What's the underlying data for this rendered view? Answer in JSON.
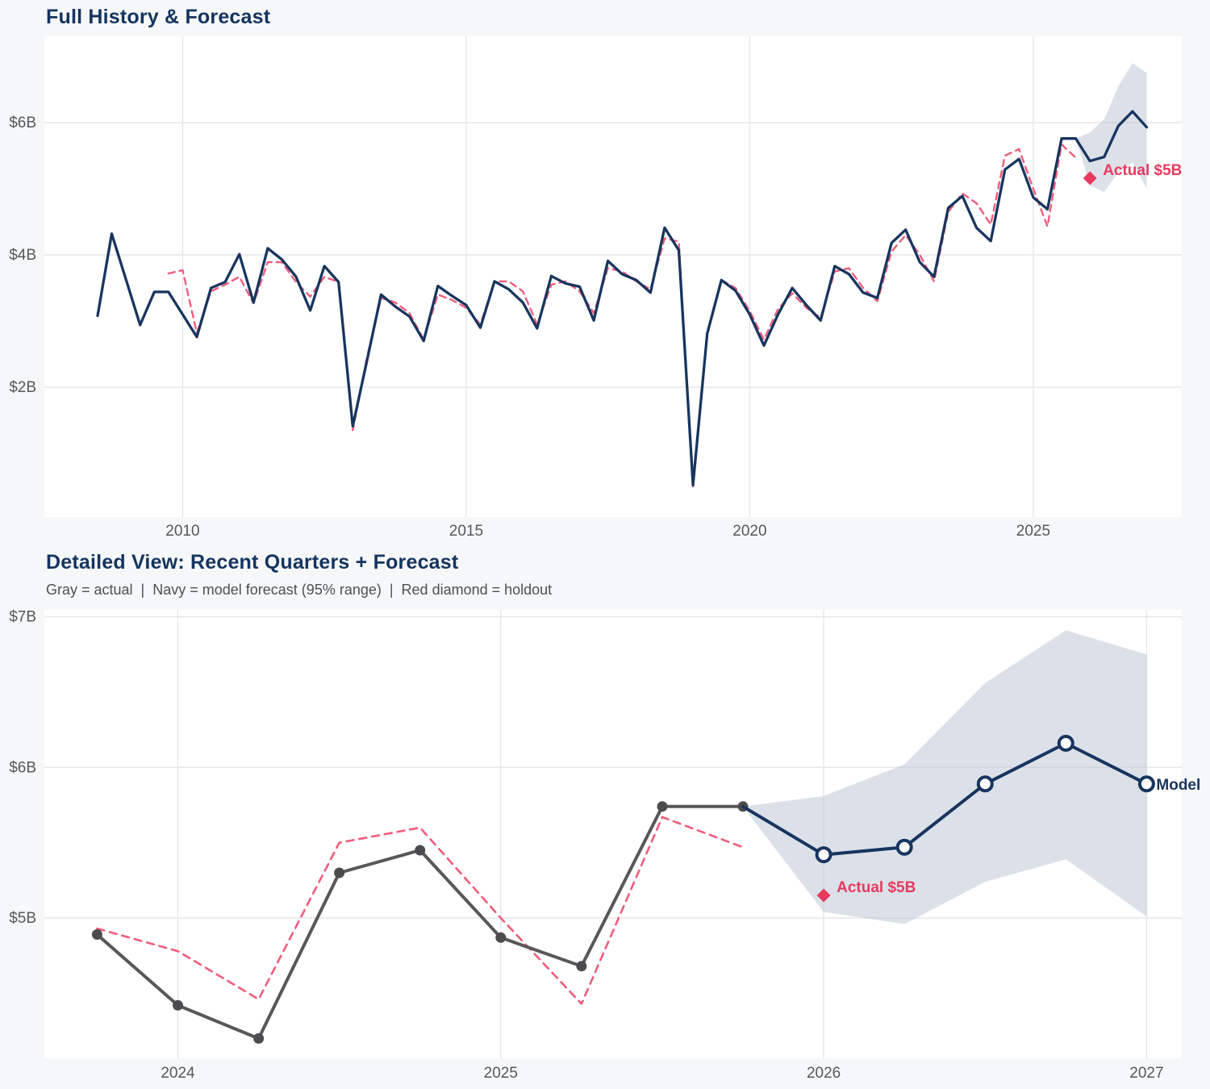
{
  "colors": {
    "page_bg": "#f6f7f9",
    "plot_bg": "#ffffff",
    "grid": "#e5e6e8",
    "tick_text": "#53595f",
    "title": "#14345f",
    "subtitle": "#4b5157",
    "navy": "#17355e",
    "pink": "#ee5d7c",
    "holdout": "#e73a5f",
    "gray": "#58585a",
    "band": "#b9c4d3"
  },
  "chart_data": [
    {
      "id": "full-history",
      "type": "line",
      "title": "Full History & Forecast",
      "x_axis": {
        "ticks": [
          2010,
          2015,
          2020,
          2025
        ],
        "range": [
          2007.55,
          2027.6
        ],
        "unit": "year"
      },
      "y_axis": {
        "ticks": [
          {
            "value": 6,
            "label": "$6B"
          },
          {
            "value": 4,
            "label": "$4B"
          },
          {
            "value": 2,
            "label": "$2B"
          }
        ],
        "range": [
          0.05,
          7.3
        ],
        "unit": "billions USD"
      },
      "series": [
        {
          "id": "fit-line",
          "name": "model fit",
          "color": "#ee5d7c",
          "width": 2.4,
          "dash": "8 6",
          "start": 2009.75,
          "step": 0.25,
          "values": [
            3.72,
            3.77,
            2.82,
            3.45,
            3.55,
            3.67,
            3.27,
            3.89,
            3.89,
            3.59,
            3.37,
            3.67,
            3.59,
            1.35,
            2.45,
            3.35,
            3.28,
            3.12,
            2.72,
            3.4,
            3.32,
            3.2,
            2.95,
            3.6,
            3.6,
            3.45,
            2.95,
            3.55,
            3.6,
            3.45,
            3.12,
            3.8,
            3.75,
            3.6,
            3.48,
            4.25,
            4.2,
            0.5,
            2.81,
            3.62,
            3.5,
            3.15,
            2.72,
            3.18,
            3.42,
            3.2,
            3.05,
            3.75,
            3.8,
            3.5,
            3.3,
            4.05,
            4.3,
            4.0,
            3.6,
            4.65,
            4.93,
            4.78,
            4.46,
            5.5,
            5.6,
            5.0,
            4.43,
            5.67,
            5.47
          ]
        },
        {
          "id": "history-forecast-line",
          "name": "actual + model forecast",
          "color": "#17355e",
          "width": 3.3,
          "start": 2008.5,
          "step": 0.25,
          "values": [
            3.08,
            4.32,
            3.63,
            2.94,
            3.44,
            3.44,
            3.1,
            2.76,
            3.5,
            3.59,
            4.01,
            3.28,
            4.1,
            3.93,
            3.67,
            3.16,
            3.83,
            3.59,
            1.41,
            2.4,
            3.4,
            3.22,
            3.07,
            2.7,
            3.53,
            3.38,
            3.24,
            2.9,
            3.6,
            3.48,
            3.28,
            2.89,
            3.68,
            3.57,
            3.52,
            3.01,
            3.91,
            3.71,
            3.62,
            3.43,
            4.41,
            4.07,
            0.52,
            2.81,
            3.62,
            3.46,
            3.1,
            2.63,
            3.1,
            3.5,
            3.24,
            3.01,
            3.83,
            3.71,
            3.43,
            3.35,
            4.18,
            4.38,
            3.89,
            3.67,
            4.71,
            4.89,
            4.41,
            4.21,
            5.29,
            5.45,
            4.87,
            4.69,
            5.76,
            5.76,
            5.42,
            5.48,
            5.95,
            6.17,
            5.93
          ]
        }
      ],
      "forecast_band": {
        "start": 2025.75,
        "step": 0.25,
        "upper": [
          5.76,
          5.85,
          6.05,
          6.55,
          6.9,
          6.75
        ],
        "lower": [
          5.76,
          5.05,
          4.95,
          5.25,
          5.4,
          5.0
        ]
      },
      "holdout": {
        "t": 2026,
        "value": 5.16,
        "label": "Actual $5B"
      }
    },
    {
      "id": "detail-view",
      "type": "line",
      "title": "Detailed View: Recent Quarters + Forecast",
      "subtitle": "Gray = actual  |  Navy = model forecast (95% range)  |  Red diamond = holdout",
      "x_axis": {
        "ticks": [
          2024,
          2025,
          2026,
          2027
        ],
        "range": [
          2023.59,
          2027.11
        ],
        "unit": "year"
      },
      "y_axis": {
        "ticks": [
          {
            "value": 7,
            "label": "$7B"
          },
          {
            "value": 6,
            "label": "$6B"
          },
          {
            "value": 5,
            "label": "$5B"
          }
        ],
        "range": [
          4.07,
          7.03
        ],
        "unit": "billions USD"
      },
      "series": [
        {
          "id": "detail-fit-line",
          "name": "model fit",
          "color": "#ee5d7c",
          "width": 2.6,
          "dash": "9 7",
          "start": 2023.75,
          "step": 0.25,
          "values": [
            4.93,
            4.78,
            4.46,
            5.5,
            5.6,
            5.0,
            4.43,
            5.67,
            5.47
          ]
        },
        {
          "id": "actual-line",
          "name": "actual",
          "color": "#58585a",
          "width": 4,
          "marker": "dot",
          "marker_color": "#4c4c4e",
          "start": 2023.75,
          "step": 0.25,
          "values": [
            4.89,
            4.42,
            4.2,
            5.3,
            5.45,
            4.87,
            4.68,
            5.74,
            5.74
          ]
        },
        {
          "id": "forecast-line",
          "name": "model forecast",
          "color": "#17355e",
          "width": 4,
          "marker": "open-circle",
          "skip_first_marker": true,
          "end_label": "Model",
          "start": 2025.75,
          "step": 0.25,
          "values": [
            5.74,
            5.42,
            5.47,
            5.89,
            6.16,
            5.89
          ]
        }
      ],
      "forecast_band": {
        "start": 2025.75,
        "step": 0.25,
        "upper": [
          5.74,
          5.81,
          6.02,
          6.56,
          6.91,
          6.75
        ],
        "lower": [
          5.74,
          5.04,
          4.96,
          5.24,
          5.39,
          5.01
        ]
      },
      "holdout": {
        "t": 2026,
        "value": 5.15,
        "label": "Actual $5B"
      }
    }
  ]
}
